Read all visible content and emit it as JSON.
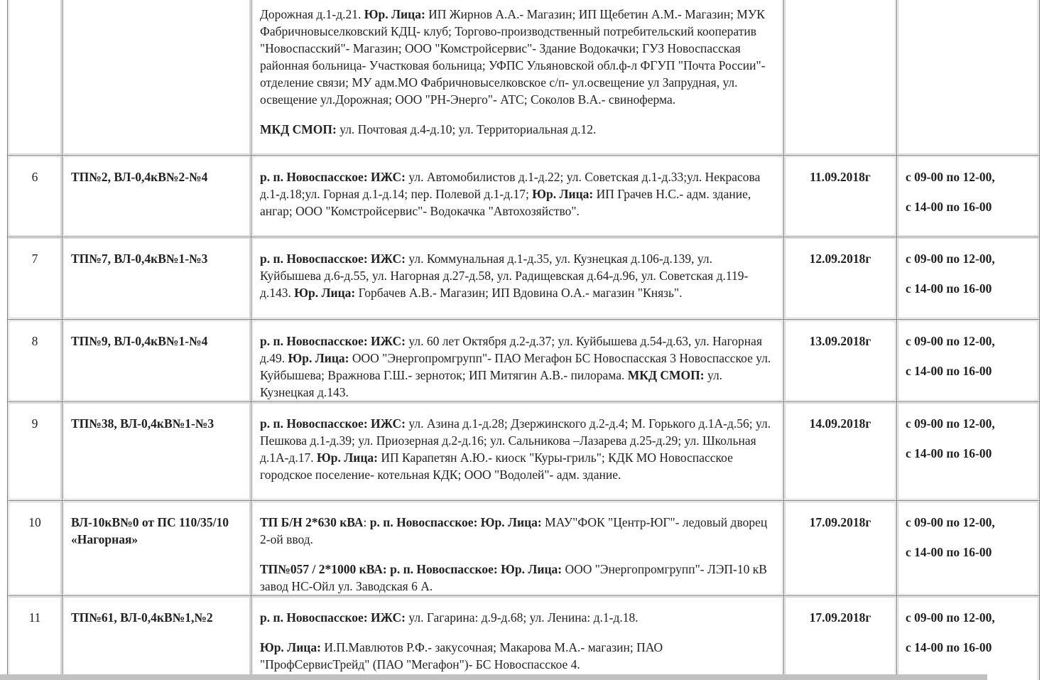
{
  "table": {
    "rows": [
      {
        "number": null,
        "object": null,
        "date": null,
        "time": [],
        "desc": [
          [
            {
              "t": "Дорожная д.1-д.21. "
            },
            {
              "b": "Юр. Лица:"
            },
            {
              "t": " ИП Жирнов А.А.- Магазин;  ИП Щебетин А.М.- Магазин; МУК Фабричновыселковский КДЦ- клуб; Торгово-производственный потребительский кооператив \"Новоспасский\"- Магазин; ООО \"Комстройсервис\"- Здание Водокачки; ГУЗ Новоспасская районная больница- Участковая больница; УФПС Ульяновской обл.ф-л ФГУП \"Почта России\"- отделение связи; МУ адм.МО Фабричновыселковское с/п- ул.освещение ул Запрудная, ул. освещение ул.Дорожная; ООО \"РН-Энерго\"- АТС; Соколов В.А.- свиноферма."
            }
          ],
          [
            {
              "b": "МКД СМОП:"
            },
            {
              "t": " ул. Почтовая д.4-д.10; ул. Территориальная д.12."
            }
          ]
        ]
      },
      {
        "number": "6",
        "object": "ТП№2, ВЛ-0,4кВ№2-№4",
        "date": "11.09.2018г",
        "time": [
          "с 09-00 по 12-00,",
          "с 14-00 по 16-00"
        ],
        "desc": [
          [
            {
              "b": "р. п. Новоспасское: ИЖС:"
            },
            {
              "t": " ул. Автомобилистов д.1-д.22; ул. Советская д.1-д.33;ул. Некрасова д.1-д.18;ул. Горная д.1-д.14; пер. Полевой д.1-д.17;  "
            },
            {
              "b": "Юр. Лица:"
            },
            {
              "t": " ИП Грачев Н.С.- адм. здание, ангар;  ООО \"Комстройсервис\"- Водокачка \"Автохозяйство\"."
            }
          ]
        ]
      },
      {
        "number": "7",
        "object": "ТП№7, ВЛ-0,4кВ№1-№3",
        "date": "12.09.2018г",
        "time": [
          "с 09-00 по 12-00,",
          "с 14-00 по 16-00"
        ],
        "desc": [
          [
            {
              "b": "р. п. Новоспасское: ИЖС:"
            },
            {
              "t": " ул. Коммунальная д.1-д.35, ул. Кузнецкая д.106-д.139, ул. Куйбышева д.6-д.55, ул. Нагорная д.27-д.58, ул. Радищевская д.64-д.96,  ул. Советская д.119-д.143.  "
            },
            {
              "b": "Юр. Лица:"
            },
            {
              "t": " Горбачев А.В.- Магазин;  ИП Вдовина О.А.- магазин \"Князь\"."
            }
          ]
        ]
      },
      {
        "number": "8",
        "object": "ТП№9, ВЛ-0,4кВ№1-№4",
        "date": "13.09.2018г",
        "time": [
          "с 09-00 по 12-00,",
          "с 14-00 по 16-00"
        ],
        "desc": [
          [
            {
              "b": "р. п. Новоспасское: ИЖС:"
            },
            {
              "t": " ул. 60 лет Октября д.2-д.37; ул. Куйбышева д.54-д.63, ул. Нагорная д.49. "
            },
            {
              "b": "Юр. Лица:"
            },
            {
              "t": " ООО \"Энергопромгрупп\"- ПАО Мегафон БС Новоспасская 3 Новоспасское ул. Куйбышева; Вражнова Г.Ш.- зерноток; ИП Митягин А.В.- пилорама. "
            },
            {
              "b": "МКД СМОП:"
            },
            {
              "t": " ул. Кузнецкая д.143."
            }
          ]
        ]
      },
      {
        "number": "9",
        "object": "ТП№38, ВЛ-0,4кВ№1-№3",
        "date": "14.09.2018г",
        "time": [
          "с 09-00 по 12-00,",
          "с 14-00 по 16-00"
        ],
        "desc": [
          [
            {
              "b": "р. п. Новоспасское: ИЖС:"
            },
            {
              "t": " ул. Азина д.1-д.28; Дзержинского д.2-д.4; М. Горького д.1А-д.56; ул. Пешкова д.1-д.39; ул. Приозерная д.2-д.16;  ул. Сальникова –Лазарева д.25-д.29; ул. Школьная д.1А-д.17. "
            },
            {
              "b": "Юр. Лица:"
            },
            {
              "t": " ИП Карапетян А.Ю.- киоск \"Куры-гриль\";  КДК МО Новоспасское городское поселение- котельная КДК; ООО \"Водолей\"- адм. здание."
            }
          ]
        ]
      },
      {
        "number": "10",
        "object": "ВЛ-10кВ№0 от ПС 110/35/10 «Нагорная»",
        "date": "17.09.2018г",
        "time": [
          "с 09-00 по 12-00,",
          "с 14-00 по 16-00"
        ],
        "desc": [
          [
            {
              "b": "ТП Б/Н 2*630 кВА"
            },
            {
              "t": ": "
            },
            {
              "b": "р. п. Новоспасское: Юр. Лица:"
            },
            {
              "t": " МАУ\"ФОК \"Центр-ЮГ\"- ледовый дворец 2-ой ввод."
            }
          ],
          [
            {
              "b": "ТП№057 / 2*1000 кВА: р. п. Новоспасское: Юр. Лица:"
            },
            {
              "t": "  ООО \"Энергопромгрупп\"- ЛЭП-10 кВ завод НС-Ойл ул. Заводская 6 А."
            }
          ]
        ]
      },
      {
        "number": "11",
        "object": "ТП№61, ВЛ-0,4кВ№1,№2",
        "date": "17.09.2018г",
        "time": [
          "с 09-00 по 12-00,",
          "с 14-00 по 16-00"
        ],
        "desc": [
          [
            {
              "b": "р. п. Новоспасское: ИЖС:"
            },
            {
              "t": " ул. Гагарина: д.9-д.68; ул. Ленина: д.1-д.18."
            }
          ],
          [
            {
              "b": " Юр. Лица:"
            },
            {
              "t": " И.П.Мавлютов Р.Ф.- закусочная; Макарова М.А.- магазин; ПАО \"ПрофСервисТрейд\" (ПАО \"Мегафон\")- БС Новоспасское 4."
            }
          ]
        ]
      }
    ]
  }
}
